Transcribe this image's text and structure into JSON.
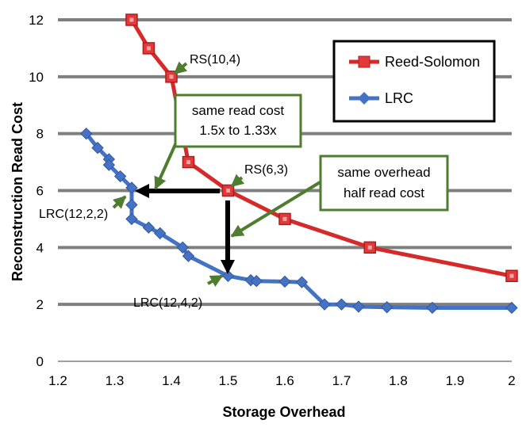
{
  "chart_data": {
    "type": "line",
    "xlabel": "Storage Overhead",
    "ylabel": "Reconstruction Read Cost",
    "xlim": [
      1.2,
      2.0
    ],
    "ylim": [
      0,
      12
    ],
    "x_ticks": [
      "1.2",
      "1.3",
      "1.4",
      "1.5",
      "1.6",
      "1.7",
      "1.8",
      "1.9",
      "2"
    ],
    "y_ticks": [
      "0",
      "2",
      "4",
      "6",
      "8",
      "10",
      "12"
    ],
    "grid": "horizontal",
    "legend_position": "top-right",
    "series": [
      {
        "name": "Reed-Solomon",
        "color": "#d62a2a",
        "marker": "square",
        "points": [
          [
            1.33,
            12
          ],
          [
            1.36,
            11
          ],
          [
            1.4,
            10
          ],
          [
            1.43,
            7
          ],
          [
            1.5,
            6
          ],
          [
            1.6,
            5
          ],
          [
            1.75,
            4
          ],
          [
            2.0,
            3
          ]
        ]
      },
      {
        "name": "LRC",
        "color": "#4472c4",
        "marker": "diamond",
        "points": [
          [
            1.25,
            8
          ],
          [
            1.27,
            7.5
          ],
          [
            1.29,
            7.1
          ],
          [
            1.29,
            6.9
          ],
          [
            1.31,
            6.5
          ],
          [
            1.33,
            6.1
          ],
          [
            1.33,
            5.5
          ],
          [
            1.33,
            5
          ],
          [
            1.36,
            4.7
          ],
          [
            1.38,
            4.5
          ],
          [
            1.42,
            4.0
          ],
          [
            1.43,
            3.7
          ],
          [
            1.5,
            3.0
          ],
          [
            1.54,
            2.85
          ],
          [
            1.55,
            2.82
          ],
          [
            1.6,
            2.8
          ],
          [
            1.63,
            2.78
          ],
          [
            1.67,
            2.0
          ],
          [
            1.7,
            2.0
          ],
          [
            1.73,
            1.92
          ],
          [
            1.78,
            1.9
          ],
          [
            1.86,
            1.88
          ],
          [
            2.0,
            1.88
          ]
        ]
      }
    ],
    "annotations": {
      "rs104": "RS(10,4)",
      "rs63": "RS(6,3)",
      "lrc1222": "LRC(12,2,2)",
      "lrc1242": "LRC(12,4,2)",
      "box1_line1": "same read cost",
      "box1_line2": "1.5x  to 1.33x",
      "box2_line1": "same overhead",
      "box2_line2": "half read cost"
    },
    "annotation_color": "#4e7d2f"
  }
}
